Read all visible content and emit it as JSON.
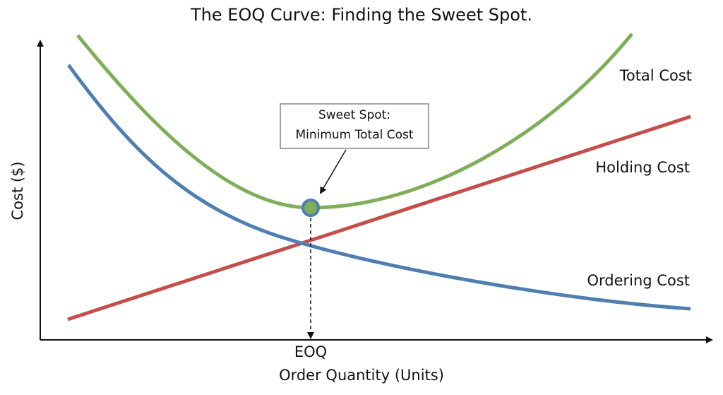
{
  "title": "The EOQ Curve: Finding the Sweet Spot.",
  "y_axis_label": "Cost ($)",
  "x_axis_label": "Order Quantity (Units)",
  "eoq_label": "EOQ",
  "curves": {
    "total": "Total Cost",
    "holding": "Holding Cost",
    "ordering": "Ordering Cost"
  },
  "annotation": {
    "line1": "Sweet Spot:",
    "line2": "Minimum Total Cost"
  }
}
